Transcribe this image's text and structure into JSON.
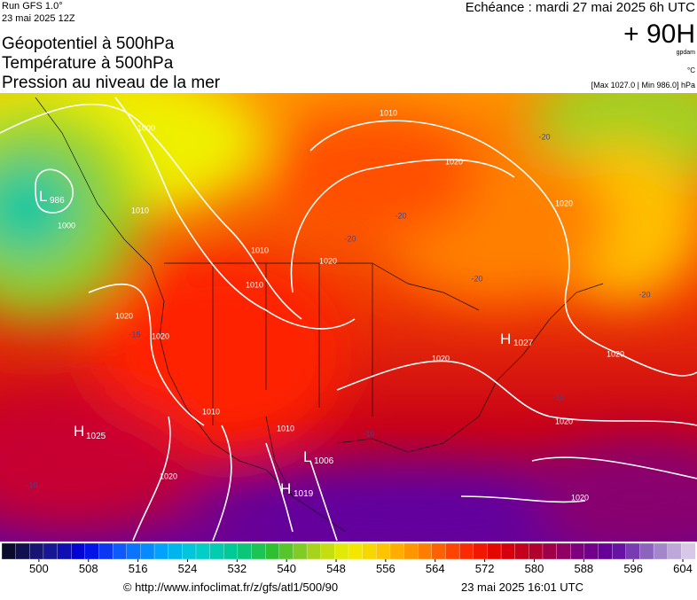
{
  "header": {
    "run": "Run GFS 1.0°",
    "run_date": "23 mai 2025 12Z",
    "titles": [
      "Géopotentiel à 500hPa",
      "Température à 500hPa",
      "Pression au niveau de la mer"
    ],
    "echeance": "Echéance : mardi 27 mai 2025 6h UTC",
    "lead": "+ 90H",
    "unit_geo": "gpdam",
    "unit_temp": "°C",
    "pressure_range": "[Max 1027.0 | Min 986.0] hPa"
  },
  "map": {
    "pressure_centers": [
      {
        "type": "L",
        "value": 986
      },
      {
        "type": "H",
        "value": 1025
      },
      {
        "type": "L",
        "value": 1006
      },
      {
        "type": "H",
        "value": 1019
      },
      {
        "type": "H",
        "value": 1027
      }
    ],
    "isobar_labels": [
      1000,
      1010,
      1020,
      1010,
      1020,
      1020,
      1020,
      1010,
      1010,
      1010,
      1010,
      1020,
      1020,
      1020,
      1020,
      1020,
      1020,
      1000
    ],
    "temperature_labels": [
      -20,
      -20,
      -20,
      -20,
      -20,
      -15,
      -10,
      -10,
      -10
    ]
  },
  "colorbar": {
    "range": [
      494,
      606
    ],
    "ticks": [
      500,
      508,
      516,
      524,
      532,
      540,
      548,
      556,
      564,
      572,
      580,
      588,
      596,
      604
    ],
    "colors": [
      "#0a0a2a",
      "#1a1a8c",
      "#0000e0",
      "#1060ff",
      "#00a0ff",
      "#00d0d0",
      "#00c890",
      "#30c030",
      "#a0d020",
      "#f0f000",
      "#ffc000",
      "#ff8000",
      "#ff3000",
      "#e00000",
      "#b00030",
      "#80007a",
      "#6000a0",
      "#9070c0",
      "#d8c8e8"
    ]
  },
  "footer": {
    "source": "© http://www.infoclimat.fr/z/gfs/atl1/500/90",
    "issued": "23 mai 2025 16:01 UTC"
  }
}
